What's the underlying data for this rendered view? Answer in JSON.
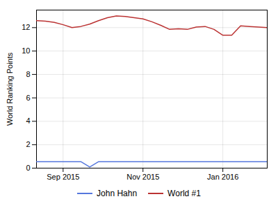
{
  "chart_data": {
    "type": "line",
    "ylabel": "World Ranking Points",
    "x": [
      0,
      1,
      2,
      3,
      4,
      5,
      6,
      7,
      8,
      9,
      10,
      11,
      12,
      13,
      14,
      15,
      16,
      17,
      18,
      19,
      20,
      21,
      22,
      23,
      24,
      25,
      26
    ],
    "series": [
      {
        "name": "John Hahn",
        "color": "#5577dd",
        "values": [
          0.55,
          0.55,
          0.55,
          0.55,
          0.55,
          0.55,
          0.1,
          0.55,
          0.55,
          0.55,
          0.55,
          0.55,
          0.55,
          0.55,
          0.55,
          0.55,
          0.55,
          0.55,
          0.55,
          0.55,
          0.55,
          0.55,
          0.55,
          0.55,
          0.55,
          0.55,
          0.55
        ]
      },
      {
        "name": "World #1",
        "color": "#bb3333",
        "values": [
          12.6,
          12.55,
          12.45,
          12.25,
          12.0,
          12.1,
          12.3,
          12.6,
          12.85,
          13.0,
          12.95,
          12.85,
          12.75,
          12.5,
          12.2,
          11.85,
          11.9,
          11.85,
          12.05,
          12.1,
          11.85,
          11.35,
          11.35,
          12.15,
          12.1,
          12.05,
          12.0
        ]
      }
    ],
    "xlim": [
      0,
      26
    ],
    "xticks": [
      {
        "value": 3,
        "label": "Sep 2015"
      },
      {
        "value": 12,
        "label": "Nov 2015"
      },
      {
        "value": 21,
        "label": "Jan 2016"
      }
    ],
    "ylim": [
      0,
      13.5
    ],
    "yticks": [
      0,
      2,
      4,
      6,
      8,
      10,
      12
    ],
    "grid": true,
    "legend": "bottom"
  }
}
